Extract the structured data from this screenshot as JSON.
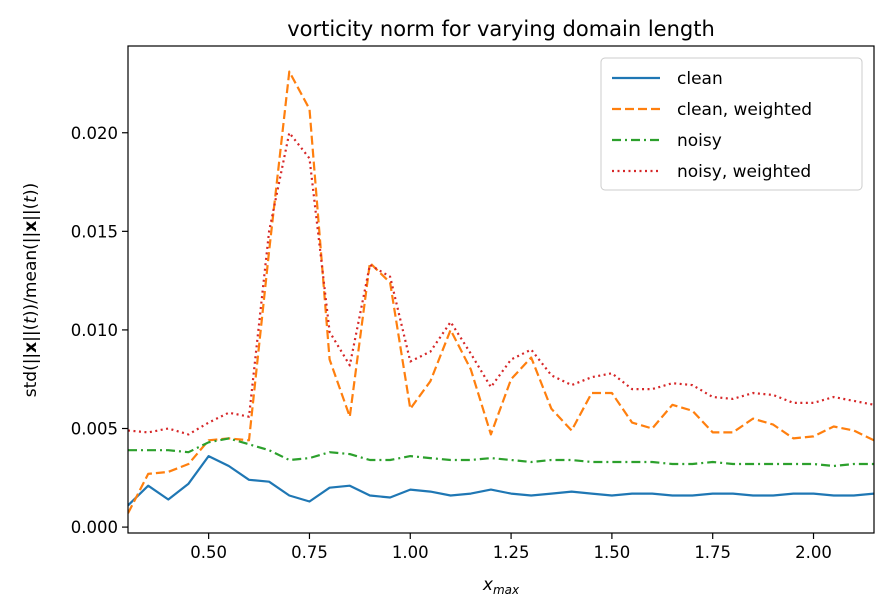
{
  "chart_data": {
    "type": "line",
    "title": "vorticity norm for varying domain length",
    "xlabel": "x_max",
    "ylabel": "std(||x||(t))/mean(||x||(t))",
    "xlim": [
      0.3,
      2.15
    ],
    "ylim": [
      -0.0003,
      0.0244
    ],
    "xticks": [
      0.5,
      0.75,
      1.0,
      1.25,
      1.5,
      1.75,
      2.0
    ],
    "xtick_labels": [
      "0.50",
      "0.75",
      "1.00",
      "1.25",
      "1.50",
      "1.75",
      "2.00"
    ],
    "yticks": [
      0.0,
      0.005,
      0.01,
      0.015,
      0.02
    ],
    "ytick_labels": [
      "0.000",
      "0.005",
      "0.010",
      "0.015",
      "0.020"
    ],
    "grid": false,
    "legend_position": "top-right",
    "x": [
      0.3,
      0.35,
      0.4,
      0.45,
      0.5,
      0.55,
      0.6,
      0.65,
      0.7,
      0.75,
      0.8,
      0.85,
      0.9,
      0.95,
      1.0,
      1.05,
      1.1,
      1.15,
      1.2,
      1.25,
      1.3,
      1.35,
      1.4,
      1.45,
      1.5,
      1.55,
      1.6,
      1.65,
      1.7,
      1.75,
      1.8,
      1.85,
      1.9,
      1.95,
      2.0,
      2.05,
      2.1,
      2.15
    ],
    "series": [
      {
        "name": "clean",
        "color": "#1f77b4",
        "style": "solid",
        "values": [
          0.0011,
          0.0021,
          0.0014,
          0.0022,
          0.0036,
          0.0031,
          0.0024,
          0.0023,
          0.0016,
          0.0013,
          0.002,
          0.0021,
          0.0016,
          0.0015,
          0.0019,
          0.0018,
          0.0016,
          0.0017,
          0.0019,
          0.0017,
          0.0016,
          0.0017,
          0.0018,
          0.0017,
          0.0016,
          0.0017,
          0.0017,
          0.0016,
          0.0016,
          0.0017,
          0.0017,
          0.0016,
          0.0016,
          0.0017,
          0.0017,
          0.0016,
          0.0016,
          0.0017
        ]
      },
      {
        "name": "clean, weighted",
        "color": "#ff7f0e",
        "style": "dashed",
        "values": [
          0.0007,
          0.0027,
          0.0028,
          0.0032,
          0.0044,
          0.0045,
          0.0044,
          0.014,
          0.0231,
          0.0212,
          0.0085,
          0.0056,
          0.0134,
          0.0124,
          0.006,
          0.0074,
          0.01,
          0.008,
          0.0047,
          0.0075,
          0.0086,
          0.006,
          0.0049,
          0.0068,
          0.0068,
          0.0053,
          0.005,
          0.0062,
          0.0059,
          0.0048,
          0.0048,
          0.0055,
          0.0052,
          0.0045,
          0.0046,
          0.0051,
          0.0049,
          0.0044
        ]
      },
      {
        "name": "noisy",
        "color": "#2ca02c",
        "style": "dashdot",
        "values": [
          0.0039,
          0.0039,
          0.0039,
          0.0038,
          0.0043,
          0.0045,
          0.0042,
          0.0039,
          0.0034,
          0.0035,
          0.0038,
          0.0037,
          0.0034,
          0.0034,
          0.0036,
          0.0035,
          0.0034,
          0.0034,
          0.0035,
          0.0034,
          0.0033,
          0.0034,
          0.0034,
          0.0033,
          0.0033,
          0.0033,
          0.0033,
          0.0032,
          0.0032,
          0.0033,
          0.0032,
          0.0032,
          0.0032,
          0.0032,
          0.0032,
          0.0031,
          0.0032,
          0.0032
        ]
      },
      {
        "name": "noisy, weighted",
        "color": "#d62728",
        "style": "dotted",
        "values": [
          0.0049,
          0.0048,
          0.005,
          0.0047,
          0.0053,
          0.0058,
          0.0056,
          0.015,
          0.02,
          0.0187,
          0.0099,
          0.0082,
          0.0133,
          0.0127,
          0.0084,
          0.0089,
          0.0104,
          0.0088,
          0.0071,
          0.0085,
          0.009,
          0.0077,
          0.0072,
          0.0076,
          0.0078,
          0.007,
          0.007,
          0.0073,
          0.0072,
          0.0066,
          0.0065,
          0.0068,
          0.0067,
          0.0063,
          0.0063,
          0.0066,
          0.0064,
          0.0062
        ]
      }
    ]
  }
}
